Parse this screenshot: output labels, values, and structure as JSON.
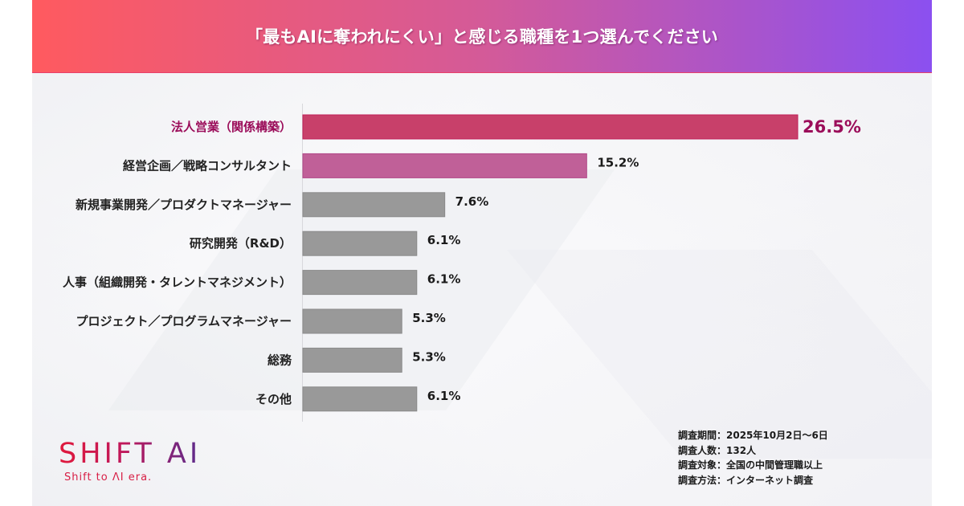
{
  "header": {
    "title": "「最もAIに奪われにくい」と感じる職種を1つ選んでください"
  },
  "colors": {
    "header_start": "#ff5a5f",
    "header_end": "#8b50f0",
    "highlight_text": "#9b0d5a",
    "bar_primary": "#c8406a",
    "bar_secondary": "#c06098",
    "bar_default": "#999999"
  },
  "chart_data": {
    "type": "bar",
    "orientation": "horizontal",
    "title": "「最もAIに奪われにくい」と感じる職種を1つ選んでください",
    "xlabel": "",
    "ylabel": "",
    "unit": "%",
    "xlim": [
      0,
      26.5
    ],
    "grid": false,
    "categories": [
      "法人営業（関係構築）",
      "経営企画／戦略コンサルタント",
      "新規事業開発／プロダクトマネージャー",
      "研究開発（R&D）",
      "人事（組織開発・タレントマネジメント）",
      "プロジェクト／プログラムマネージャー",
      "総務",
      "その他"
    ],
    "values": [
      26.5,
      15.2,
      7.6,
      6.1,
      6.1,
      5.3,
      5.3,
      6.1
    ],
    "value_labels": [
      "26.5%",
      "15.2%",
      "7.6%",
      "6.1%",
      "6.1%",
      "5.3%",
      "5.3%",
      "6.1%"
    ],
    "bar_colors": [
      "#c8406a",
      "#c06098",
      "#999999",
      "#999999",
      "#999999",
      "#999999",
      "#999999",
      "#999999"
    ],
    "highlight_index": 0
  },
  "logo": {
    "name": "SHIFT AI",
    "tagline": "Shift to ΛI era."
  },
  "survey_info": [
    "調査期間：2025年10月2日〜6日",
    "調査人数：132人",
    "調査対象：全国の中間管理職以上",
    "調査方法：インターネット調査"
  ]
}
